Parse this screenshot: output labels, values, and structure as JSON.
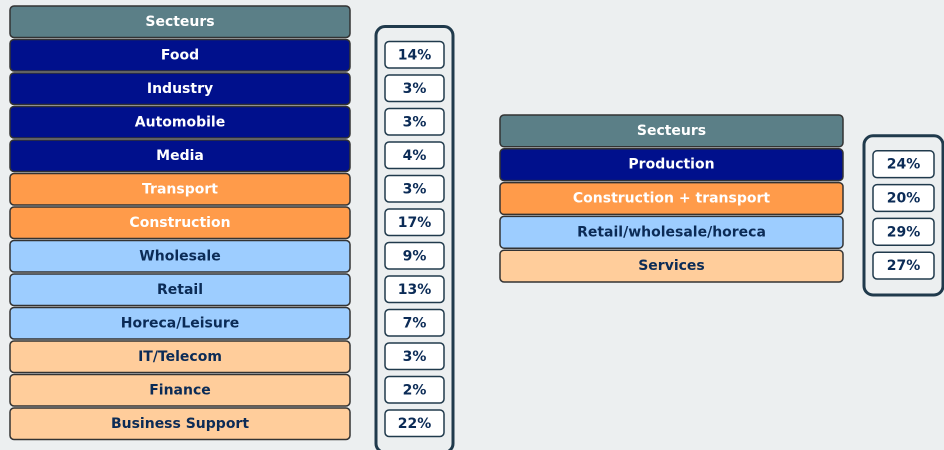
{
  "left": {
    "header": "Secteurs",
    "rows": [
      {
        "label": "Food",
        "share": "14%",
        "color": "#00108c",
        "text_color": "#ffffff"
      },
      {
        "label": "Industry",
        "share": "3%",
        "color": "#00108c",
        "text_color": "#ffffff"
      },
      {
        "label": "Automobile",
        "share": "3%",
        "color": "#00108c",
        "text_color": "#ffffff"
      },
      {
        "label": "Media",
        "share": "4%",
        "color": "#00108c",
        "text_color": "#ffffff"
      },
      {
        "label": "Transport",
        "share": "3%",
        "color": "#ff9b4a",
        "text_color": "#ffffff"
      },
      {
        "label": "Construction",
        "share": "17%",
        "color": "#ff9b4a",
        "text_color": "#ffffff"
      },
      {
        "label": "Wholesale",
        "share": "9%",
        "color": "#9dcdff",
        "text_color": "#0b2b56"
      },
      {
        "label": "Retail",
        "share": "13%",
        "color": "#9dcdff",
        "text_color": "#0b2b56"
      },
      {
        "label": "Horeca/Leisure",
        "share": "7%",
        "color": "#9dcdff",
        "text_color": "#0b2b56"
      },
      {
        "label": "IT/Telecom",
        "share": "3%",
        "color": "#ffcd9b",
        "text_color": "#0b2b56"
      },
      {
        "label": "Finance",
        "share": "2%",
        "color": "#ffcd9b",
        "text_color": "#0b2b56"
      },
      {
        "label": "Business Support",
        "share": "22%",
        "color": "#ffcd9b",
        "text_color": "#0b2b56"
      }
    ]
  },
  "right": {
    "header": "Secteurs",
    "rows": [
      {
        "label": "Production",
        "share": "24%",
        "color": "#00108c",
        "text_color": "#ffffff"
      },
      {
        "label": "Construction + transport",
        "share": "20%",
        "color": "#ff9b4a",
        "text_color": "#ffffff"
      },
      {
        "label": "Retail/wholesale/horeca",
        "share": "29%",
        "color": "#9dcdff",
        "text_color": "#0b2b56"
      },
      {
        "label": "Services",
        "share": "27%",
        "color": "#ffcd9b",
        "text_color": "#0b2b56"
      }
    ]
  }
}
